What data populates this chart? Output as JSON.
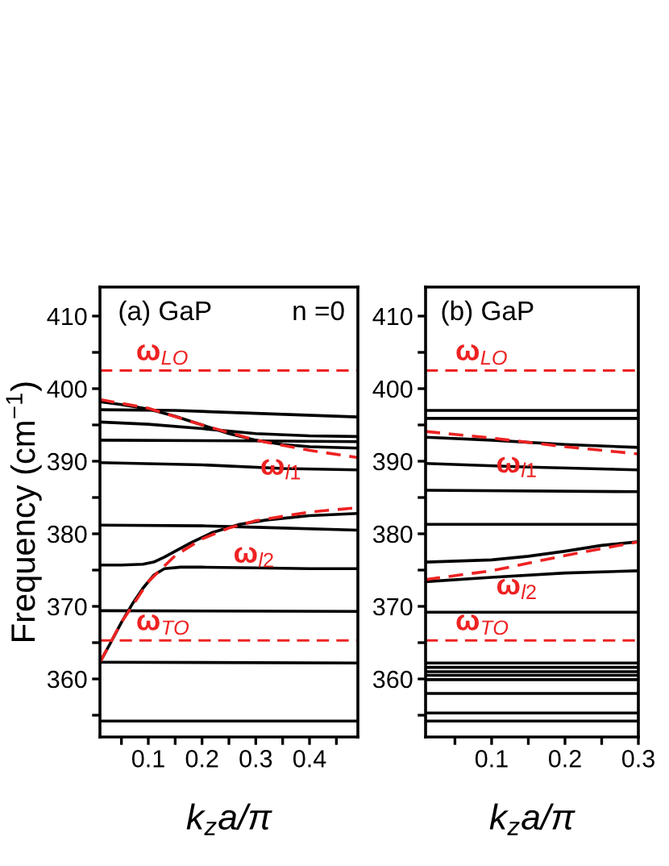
{
  "chart_data": [
    {
      "type": "line",
      "ylabel": "Frequency (cm$^{−1}$)",
      "xlabel": "k$_{z}$a/π",
      "xlim": [
        0.01,
        0.49
      ],
      "ylim": [
        352,
        414
      ],
      "xticks": [
        {
          "value": 0.05,
          "label": null
        },
        0.1,
        {
          "value": 0.15,
          "label": null
        },
        0.2,
        {
          "value": 0.25,
          "label": null
        },
        0.3,
        {
          "value": 0.35,
          "label": null
        },
        0.4,
        {
          "value": 0.45,
          "label": null
        }
      ],
      "yticks": [
        {
          "value": 355,
          "label": null
        },
        360,
        {
          "value": 365,
          "label": null
        },
        370,
        {
          "value": 375,
          "label": null
        },
        380,
        {
          "value": 385,
          "label": null
        },
        390,
        {
          "value": 395,
          "label": null
        },
        400,
        {
          "value": 405,
          "label": null
        },
        410
      ],
      "grid": false,
      "legend": false,
      "line_style": "solid",
      "marker": "none",
      "annotations": [
        "(a) GaP",
        "n =0",
        {
          "text": "ω$_{l1}$",
          "x": 0.3,
          "y": 392.9
        },
        {
          "text": "ω$_{l2}$",
          "x": 0.25,
          "y": 380.8
        }
      ],
      "ref_lines": [
        {
          "axis": "y",
          "value": 402.5,
          "label": "ω$_{LO}$",
          "color": "#ee2222",
          "line_style": "dashed"
        },
        {
          "axis": "y",
          "value": 365.3,
          "label": "ω$_{TO}$",
          "color": "#ee2222",
          "line_style": "dashed"
        }
      ],
      "series": [
        {
          "color": "#000000",
          "x": [
            0.01,
            0.03,
            0.05,
            0.07,
            0.09,
            0.11,
            0.13,
            0.16,
            0.2,
            0.3,
            0.4,
            0.49
          ],
          "values": [
            362.3,
            365,
            367.8,
            370.3,
            372.5,
            374.3,
            375.2,
            375.4,
            375.4,
            375.3,
            375.2,
            375.2
          ]
        },
        {
          "color": "#000000",
          "x": [
            0.01,
            0.05,
            0.09,
            0.11,
            0.13,
            0.15,
            0.18,
            0.22,
            0.27,
            0.32,
            0.4,
            0.49
          ],
          "values": [
            375.7,
            375.7,
            375.8,
            376.1,
            376.8,
            377.6,
            378.8,
            380.2,
            381.3,
            381.9,
            382.5,
            382.8
          ]
        },
        {
          "color": "#000000",
          "x": [
            0.01,
            0.2,
            0.3,
            0.49
          ],
          "values": [
            381.2,
            381.1,
            380.9,
            380.5
          ]
        },
        {
          "color": "#000000",
          "x": [
            0.01,
            0.49
          ],
          "values": [
            369.4,
            369.3
          ]
        },
        {
          "color": "#000000",
          "x": [
            0.01,
            0.49
          ],
          "values": [
            362.3,
            362.2
          ]
        },
        {
          "color": "#000000",
          "x": [
            0.01,
            0.49
          ],
          "values": [
            354.2,
            354.2
          ]
        },
        {
          "color": "#000000",
          "x": [
            0.01,
            0.2,
            0.35,
            0.49
          ],
          "values": [
            389.8,
            389.5,
            389.0,
            388.8
          ]
        },
        {
          "color": "#000000",
          "x": [
            0.01,
            0.3,
            0.49
          ],
          "values": [
            392.9,
            392.8,
            392.7
          ]
        },
        {
          "color": "#000000",
          "x": [
            0.01,
            0.1,
            0.2,
            0.3,
            0.4,
            0.49
          ],
          "values": [
            395.4,
            395.1,
            394.5,
            393.8,
            393.5,
            393.4
          ]
        },
        {
          "color": "#000000",
          "x": [
            0.01,
            0.15,
            0.3,
            0.49
          ],
          "values": [
            397.1,
            397.0,
            396.6,
            396.1
          ]
        },
        {
          "color": "#000000",
          "x": [
            0.01,
            0.05,
            0.1,
            0.15,
            0.2,
            0.25,
            0.3,
            0.35,
            0.4,
            0.49
          ],
          "values": [
            398.2,
            397.8,
            397.2,
            396.2,
            395.0,
            393.8,
            392.9,
            392.3,
            392.0,
            391.8
          ]
        },
        {
          "color": "#ee2222",
          "line_style": "dashed",
          "x": [
            0.01,
            0.1,
            0.2,
            0.3,
            0.4,
            0.49
          ],
          "values": [
            398.5,
            397.3,
            395.0,
            392.9,
            391.5,
            390.5
          ]
        },
        {
          "color": "#ee2222",
          "line_style": "dashed",
          "x": [
            0.01,
            0.05,
            0.1,
            0.15,
            0.2,
            0.25,
            0.3,
            0.4,
            0.49
          ],
          "values": [
            362.3,
            367.8,
            373.4,
            377.0,
            379.3,
            380.8,
            381.8,
            383.0,
            383.6
          ]
        }
      ]
    },
    {
      "type": "line",
      "xlabel": "k$_{z}$a/π",
      "xlim": [
        0.01,
        0.3
      ],
      "ylim": [
        352,
        414
      ],
      "xticks": [
        {
          "value": 0.05,
          "label": null
        },
        0.1,
        {
          "value": 0.15,
          "label": null
        },
        0.2,
        {
          "value": 0.25,
          "label": null
        },
        0.3
      ],
      "yticks": [
        {
          "value": 355,
          "label": null
        },
        360,
        {
          "value": 365,
          "label": null
        },
        370,
        {
          "value": 375,
          "label": null
        },
        380,
        {
          "value": 385,
          "label": null
        },
        390,
        {
          "value": 395,
          "label": null
        },
        400,
        {
          "value": 405,
          "label": null
        },
        410
      ],
      "grid": false,
      "legend": false,
      "line_style": "solid",
      "marker": "none",
      "annotations": [
        "(b) GaP",
        {
          "text": "ω$_{l1}$",
          "x": 0.1,
          "y": 393.2
        },
        {
          "text": "ω$_{l2}$",
          "x": 0.1,
          "y": 376.4
        }
      ],
      "ref_lines": [
        {
          "axis": "y",
          "value": 402.5,
          "label": "ω$_{LO}$",
          "color": "#ee2222",
          "line_style": "dashed"
        },
        {
          "axis": "y",
          "value": 365.3,
          "label": "ω$_{TO}$",
          "color": "#ee2222",
          "line_style": "dashed"
        }
      ],
      "series": [
        {
          "color": "#000000",
          "x": [
            0.01,
            0.3
          ],
          "values": [
            397.0,
            397.0
          ]
        },
        {
          "color": "#000000",
          "x": [
            0.01,
            0.3
          ],
          "values": [
            395.9,
            395.9
          ]
        },
        {
          "color": "#000000",
          "x": [
            0.01,
            0.1,
            0.2,
            0.3
          ],
          "values": [
            393.3,
            392.9,
            392.3,
            391.9
          ]
        },
        {
          "color": "#000000",
          "x": [
            0.01,
            0.15,
            0.3
          ],
          "values": [
            389.7,
            389.2,
            388.8
          ]
        },
        {
          "color": "#000000",
          "x": [
            0.01,
            0.3
          ],
          "values": [
            386.0,
            385.8
          ]
        },
        {
          "color": "#000000",
          "x": [
            0.01,
            0.3
          ],
          "values": [
            381.3,
            381.3
          ]
        },
        {
          "color": "#000000",
          "x": [
            0.01,
            0.1,
            0.15,
            0.2,
            0.25,
            0.3
          ],
          "values": [
            376.1,
            376.4,
            376.9,
            377.6,
            378.4,
            378.9
          ]
        },
        {
          "color": "#000000",
          "x": [
            0.01,
            0.1,
            0.2,
            0.3
          ],
          "values": [
            373.4,
            374.0,
            374.6,
            374.9
          ]
        },
        {
          "color": "#000000",
          "x": [
            0.01,
            0.3
          ],
          "values": [
            369.2,
            369.2
          ]
        },
        {
          "color": "#000000",
          "x": [
            0.01,
            0.3
          ],
          "values": [
            362.2,
            362.2
          ]
        },
        {
          "color": "#000000",
          "x": [
            0.01,
            0.3
          ],
          "values": [
            361.6,
            361.6
          ]
        },
        {
          "color": "#000000",
          "x": [
            0.01,
            0.3
          ],
          "values": [
            361.0,
            361.0
          ]
        },
        {
          "color": "#000000",
          "x": [
            0.01,
            0.3
          ],
          "values": [
            360.5,
            360.5
          ]
        },
        {
          "color": "#000000",
          "x": [
            0.01,
            0.3
          ],
          "values": [
            359.9,
            359.9
          ]
        },
        {
          "color": "#000000",
          "x": [
            0.01,
            0.3
          ],
          "values": [
            358.0,
            358.0
          ]
        },
        {
          "color": "#000000",
          "x": [
            0.01,
            0.3
          ],
          "values": [
            355.3,
            355.3
          ]
        },
        {
          "color": "#000000",
          "x": [
            0.01,
            0.3
          ],
          "values": [
            354.2,
            354.2
          ]
        },
        {
          "color": "#ee2222",
          "line_style": "dashed",
          "x": [
            0.01,
            0.1,
            0.2,
            0.3
          ],
          "values": [
            394.1,
            393.2,
            392.0,
            391.0
          ]
        },
        {
          "color": "#ee2222",
          "line_style": "dashed",
          "x": [
            0.01,
            0.1,
            0.2,
            0.3
          ],
          "values": [
            373.7,
            374.9,
            377.0,
            378.9
          ]
        }
      ]
    }
  ]
}
